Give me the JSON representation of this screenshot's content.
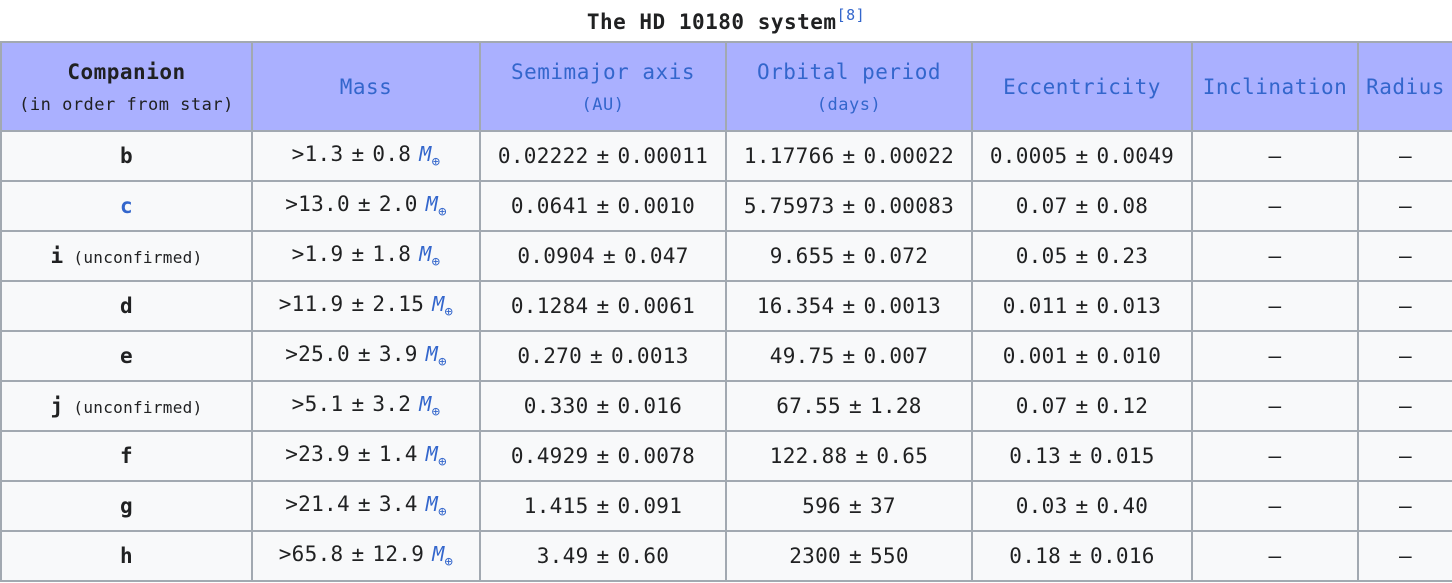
{
  "caption": {
    "title": "The HD 10180 system",
    "ref": "[8]"
  },
  "headers": {
    "companion": "Companion",
    "companion_sub": "(in order from star)",
    "mass": "Mass",
    "semimajor": "Semimajor axis",
    "semimajor_unit": "(AU)",
    "period": "Orbital period",
    "period_unit": "(days)",
    "eccentricity": "Eccentricity",
    "inclination": "Inclination",
    "radius": "Radius"
  },
  "unit_symbol": "M",
  "unit_sub": "⊕",
  "pm": "±",
  "rows": [
    {
      "name": "b",
      "link": false,
      "note": "",
      "mass": ">1.3",
      "mass_err": "0.8",
      "a": "0.02222",
      "a_err": "0.00011",
      "p": "1.17766",
      "p_err": "0.00022",
      "e": "0.0005",
      "e_err": "0.0049",
      "inc": "—",
      "rad": "—"
    },
    {
      "name": "c",
      "link": true,
      "note": "",
      "mass": ">13.0",
      "mass_err": "2.0",
      "a": "0.0641",
      "a_err": "0.0010",
      "p": "5.75973",
      "p_err": "0.00083",
      "e": "0.07",
      "e_err": "0.08",
      "inc": "—",
      "rad": "—"
    },
    {
      "name": "i",
      "link": false,
      "note": "(unconfirmed)",
      "mass": ">1.9",
      "mass_err": "1.8",
      "a": "0.0904",
      "a_err": "0.047",
      "p": "9.655",
      "p_err": "0.072",
      "e": "0.05",
      "e_err": "0.23",
      "inc": "—",
      "rad": "—"
    },
    {
      "name": "d",
      "link": false,
      "note": "",
      "mass": ">11.9",
      "mass_err": "2.15",
      "a": "0.1284",
      "a_err": "0.0061",
      "p": "16.354",
      "p_err": "0.0013",
      "e": "0.011",
      "e_err": "0.013",
      "inc": "—",
      "rad": "—"
    },
    {
      "name": "e",
      "link": false,
      "note": "",
      "mass": ">25.0",
      "mass_err": "3.9",
      "a": "0.270",
      "a_err": "0.0013",
      "p": "49.75",
      "p_err": "0.007",
      "e": "0.001",
      "e_err": "0.010",
      "inc": "—",
      "rad": "—"
    },
    {
      "name": "j",
      "link": false,
      "note": "(unconfirmed)",
      "mass": ">5.1",
      "mass_err": "3.2",
      "a": "0.330",
      "a_err": "0.016",
      "p": "67.55",
      "p_err": "1.28",
      "e": "0.07",
      "e_err": "0.12",
      "inc": "—",
      "rad": "—"
    },
    {
      "name": "f",
      "link": false,
      "note": "",
      "mass": ">23.9",
      "mass_err": "1.4",
      "a": "0.4929",
      "a_err": "0.0078",
      "p": "122.88",
      "p_err": "0.65",
      "e": "0.13",
      "e_err": "0.015",
      "inc": "—",
      "rad": "—"
    },
    {
      "name": "g",
      "link": false,
      "note": "",
      "mass": ">21.4",
      "mass_err": "3.4",
      "a": "1.415",
      "a_err": "0.091",
      "p": "596",
      "p_err": "37",
      "e": "0.03",
      "e_err": "0.40",
      "inc": "—",
      "rad": "—"
    },
    {
      "name": "h",
      "link": false,
      "note": "",
      "mass": ">65.8",
      "mass_err": "12.9",
      "a": "3.49",
      "a_err": "0.60",
      "p": "2300",
      "p_err": "550",
      "e": "0.18",
      "e_err": "0.016",
      "inc": "—",
      "rad": "—"
    }
  ]
}
